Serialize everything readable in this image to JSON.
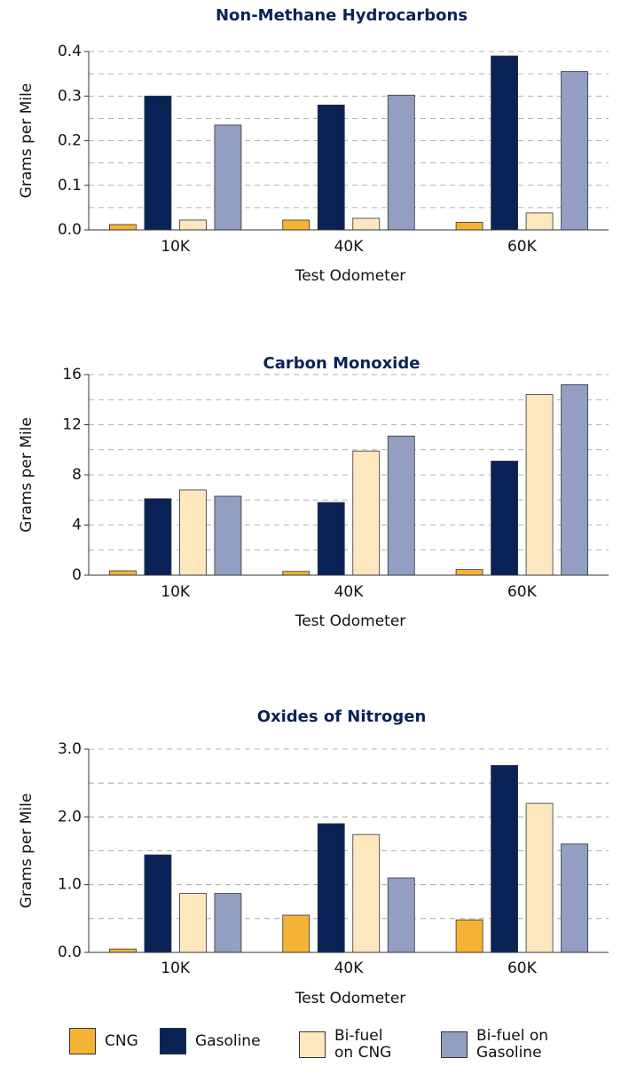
{
  "legend": [
    {
      "name": "CNG",
      "color": "#f5b335"
    },
    {
      "name": "Gasoline",
      "color": "#0a2357"
    },
    {
      "name": "Bi-fuel on CNG",
      "color": "#fde7bf"
    },
    {
      "name": "Bi-fuel on Gasoline",
      "color": "#929fc2"
    }
  ],
  "chart_data": [
    {
      "type": "bar",
      "title": "Non-Methane Hydrocarbons",
      "x_label": "Test Odometer",
      "y_label": "Grams per Mile",
      "categories": [
        "10K",
        "40K",
        "60K"
      ],
      "series": [
        {
          "values": [
            0.012,
            0.022,
            0.017
          ]
        },
        {
          "values": [
            0.3,
            0.28,
            0.39
          ]
        },
        {
          "values": [
            0.022,
            0.026,
            0.038
          ]
        },
        {
          "values": [
            0.235,
            0.302,
            0.355
          ]
        }
      ],
      "ylim": [
        0,
        0.4
      ],
      "yticks": [
        {
          "value": 0,
          "label": "0.0"
        },
        0.1,
        0.2,
        0.3,
        0.4
      ],
      "minor_yticks": [
        0.05,
        0.15,
        0.25,
        0.35
      ],
      "grid": true
    },
    {
      "type": "bar",
      "title": "Carbon Monoxide",
      "x_label": "Test Odometer",
      "y_label": "Grams per Mile",
      "categories": [
        "10K",
        "40K",
        "60K"
      ],
      "series": [
        {
          "values": [
            0.35,
            0.3,
            0.45
          ]
        },
        {
          "values": [
            6.1,
            5.8,
            9.1
          ]
        },
        {
          "values": [
            6.8,
            9.9,
            14.4
          ]
        },
        {
          "values": [
            6.3,
            11.1,
            15.2
          ]
        }
      ],
      "ylim": [
        0,
        16
      ],
      "yticks": [
        0,
        4,
        8,
        12,
        16
      ],
      "minor_yticks": [
        2,
        6,
        10,
        14
      ],
      "grid": true
    },
    {
      "type": "bar",
      "title": "Oxides of Nitrogen",
      "x_label": "Test Odometer",
      "y_label": "Grams per Mile",
      "categories": [
        "10K",
        "40K",
        "60K"
      ],
      "series": [
        {
          "values": [
            0.05,
            0.55,
            0.48
          ]
        },
        {
          "values": [
            1.44,
            1.9,
            2.76
          ]
        },
        {
          "values": [
            0.87,
            1.74,
            2.2
          ]
        },
        {
          "values": [
            0.87,
            1.1,
            1.6
          ]
        }
      ],
      "ylim": [
        0,
        3
      ],
      "yticks": [
        {
          "value": 0,
          "label": "0.0"
        },
        {
          "value": 1,
          "label": "1.0"
        },
        {
          "value": 2,
          "label": "2.0"
        },
        {
          "value": 3,
          "label": "3.0"
        }
      ],
      "minor_yticks": [
        0.5,
        1.5,
        2.5
      ],
      "grid": true
    }
  ]
}
